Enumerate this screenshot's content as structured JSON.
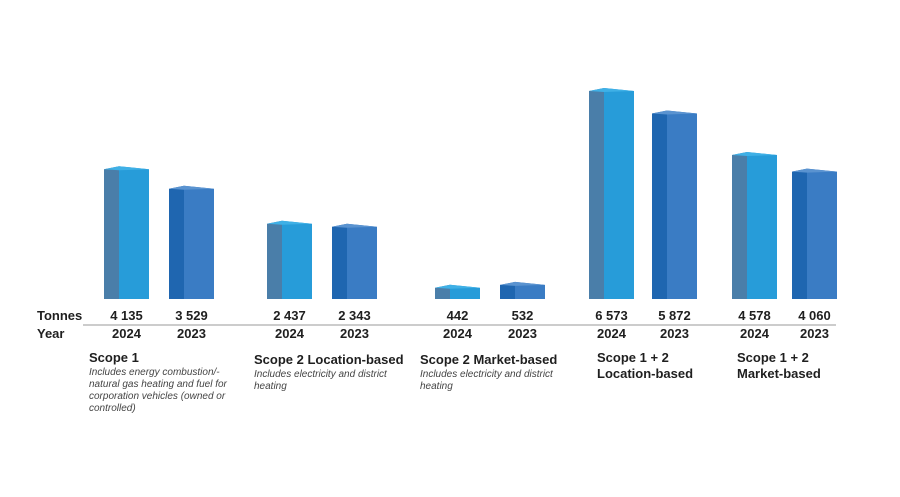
{
  "chart_data": {
    "type": "bar",
    "row_labels": {
      "values": "Tonnes",
      "years": "Year"
    },
    "groups": [
      {
        "title": "Scope 1",
        "description": "Includes energy combustion/-natural gas heating and fuel for corporation vehicles (owned or controlled)",
        "bars": [
          {
            "year": "2024",
            "value": 4135,
            "label": "4 135"
          },
          {
            "year": "2023",
            "value": 3529,
            "label": "3 529"
          }
        ]
      },
      {
        "title": "Scope 2 Location-based",
        "description": "Includes electricity and district heating",
        "bars": [
          {
            "year": "2024",
            "value": 2437,
            "label": "2 437"
          },
          {
            "year": "2023",
            "value": 2343,
            "label": "2 343"
          }
        ]
      },
      {
        "title": "Scope 2 Market-based",
        "description": "Includes electricity and district heating",
        "bars": [
          {
            "year": "2024",
            "value": 442,
            "label": "442"
          },
          {
            "year": "2023",
            "value": 532,
            "label": "532"
          }
        ]
      },
      {
        "title": "Scope 1 + 2\nLocation-based",
        "description": "",
        "bars": [
          {
            "year": "2024",
            "value": 6573,
            "label": "6 573"
          },
          {
            "year": "2023",
            "value": 5872,
            "label": "5 872"
          }
        ]
      },
      {
        "title": "Scope 1 + 2\nMarket-based",
        "description": "",
        "bars": [
          {
            "year": "2024",
            "value": 4578,
            "label": "4 578"
          },
          {
            "year": "2023",
            "value": 4060,
            "label": "4 060"
          }
        ]
      }
    ],
    "colors": {
      "bar_2024_front": "#279cd9",
      "bar_2024_side": "#4a7ea9",
      "bar_2024_top": "#3fb0e6",
      "bar_2023_front": "#3a7cc4",
      "bar_2023_side": "#1f66b0",
      "bar_2023_top": "#5a93d0",
      "axis_line": "#999999",
      "text": "#1f1f1f"
    }
  }
}
